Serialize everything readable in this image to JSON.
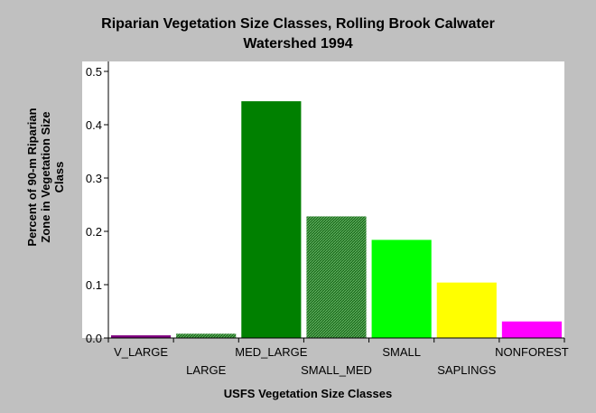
{
  "chart_data": {
    "type": "bar",
    "title_lines": [
      "Riparian Vegetation Size Classes, Rolling Brook Calwater",
      "Watershed 1994"
    ],
    "xlabel": "USFS Vegetation Size Classes",
    "ylabel_lines": [
      "Percent of 90-m Riparian",
      "Zone in Vegetation Size",
      "Class"
    ],
    "categories": [
      "V_LARGE",
      "LARGE",
      "MED_LARGE",
      "SMALL_MED",
      "SMALL",
      "SAPLINGS",
      "NONFOREST"
    ],
    "values": [
      0.005,
      0.008,
      0.444,
      0.228,
      0.184,
      0.104,
      0.031
    ],
    "colors": [
      "#800080",
      "#2e6b2e",
      "#008000",
      "#2f8f2f",
      "#00ff00",
      "#ffff00",
      "#ff00ff"
    ],
    "hatched": [
      false,
      true,
      false,
      true,
      false,
      false,
      false
    ],
    "ylim": [
      0,
      0.5
    ],
    "yticks": [
      "0.0",
      "0.1",
      "0.2",
      "0.3",
      "0.4",
      "0.5"
    ],
    "grid": false,
    "legend": "none"
  }
}
